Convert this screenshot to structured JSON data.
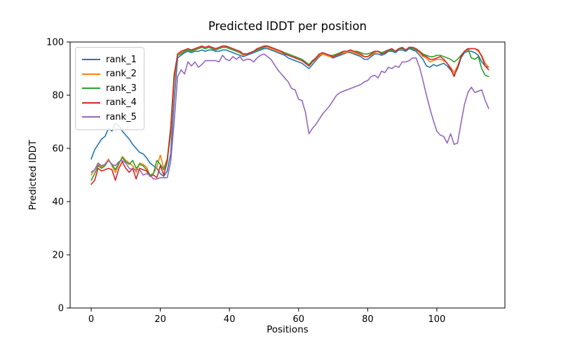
{
  "chart_data": {
    "type": "line",
    "title": "Predicted lDDT per position",
    "xlabel": "Positions",
    "ylabel": "Predicted lDDT",
    "xlim": [
      -6.1,
      119.7
    ],
    "ylim": [
      0,
      100
    ],
    "xticks": [
      0,
      20,
      40,
      60,
      80,
      100
    ],
    "yticks": [
      0,
      20,
      40,
      60,
      80,
      100
    ],
    "grid": false,
    "legend_position": "upper-left",
    "x_step": 1,
    "series": [
      {
        "name": "rank_1",
        "color": "#1f77b4",
        "values": [
          56,
          59.5,
          61.5,
          63.5,
          64.5,
          67.5,
          66.5,
          69.5,
          68.5,
          66.5,
          65,
          63.5,
          61.5,
          60,
          58.5,
          58,
          56.5,
          54.5,
          53.5,
          52.5,
          50.5,
          49.5,
          51.5,
          58,
          78,
          94,
          95,
          96,
          96.5,
          96,
          96.5,
          96.5,
          97,
          96.5,
          97,
          97,
          96.5,
          96.5,
          97,
          97,
          96.5,
          96,
          95.5,
          95,
          94.5,
          95,
          95.5,
          96,
          96.5,
          97,
          97.5,
          97.5,
          97,
          96.5,
          96,
          95.5,
          95,
          94,
          93.5,
          93,
          92.5,
          92,
          91,
          90,
          91.5,
          93,
          94.5,
          95.5,
          95,
          94.5,
          94,
          94.5,
          95,
          95.5,
          96,
          96,
          95.5,
          95,
          94.5,
          93.5,
          93.5,
          94.5,
          95.5,
          95.5,
          95,
          95.5,
          96.5,
          96.5,
          96,
          97,
          97,
          96.5,
          97.5,
          97,
          96.5,
          95,
          93.5,
          91,
          90.5,
          91.5,
          91,
          91.5,
          92,
          91,
          89.5,
          87.5,
          90,
          94,
          96,
          96.5,
          96.5,
          96,
          95,
          92.5,
          91,
          90.5
        ]
      },
      {
        "name": "rank_2",
        "color": "#ff7f0e",
        "values": [
          50,
          52,
          54,
          53,
          54,
          56,
          53.5,
          51,
          54,
          57,
          55.5,
          54.5,
          53.5,
          51,
          54.5,
          54,
          53,
          50,
          50.5,
          53,
          57.5,
          52.5,
          56,
          65,
          85,
          95.5,
          96,
          96.5,
          97,
          96.5,
          97.5,
          97.5,
          98,
          97.5,
          98,
          97.5,
          97,
          97.5,
          98,
          98,
          97.5,
          97,
          96.5,
          96,
          95,
          95.5,
          96,
          96.5,
          97,
          97.5,
          98,
          98,
          97.5,
          97,
          96.5,
          96,
          95.5,
          95,
          94.5,
          94,
          93.5,
          93,
          92,
          91,
          92.5,
          93.5,
          95,
          95.5,
          95,
          94.5,
          94.5,
          95,
          95.5,
          96,
          96,
          96.5,
          96,
          95.5,
          95,
          94.5,
          94.5,
          95,
          96,
          96.5,
          95.5,
          96,
          97,
          97,
          96.5,
          97.5,
          97.5,
          97,
          98,
          97.5,
          97,
          96,
          94.5,
          94,
          92.5,
          93,
          93.5,
          93.5,
          93,
          92,
          90.5,
          88.5,
          91,
          94.5,
          96.5,
          97,
          97.5,
          97.5,
          96.5,
          95,
          92,
          90.5
        ]
      },
      {
        "name": "rank_3",
        "color": "#2ca02c",
        "values": [
          48,
          50.5,
          53.5,
          52.5,
          53.5,
          55.5,
          54,
          52,
          54.5,
          56.5,
          55,
          54,
          55.5,
          52.5,
          54,
          53.5,
          52,
          50,
          50.5,
          55.5,
          54,
          52,
          56,
          68,
          88,
          95,
          95.5,
          96.5,
          97,
          96.5,
          97,
          97.5,
          98,
          97.5,
          98,
          97.5,
          97,
          97.5,
          98,
          98,
          97.5,
          97,
          96.5,
          96,
          95.5,
          95.5,
          96,
          96.5,
          97,
          97.5,
          98,
          98.5,
          98,
          97.5,
          97,
          96.5,
          96,
          95.5,
          95,
          94.5,
          94,
          93.5,
          92.5,
          91.5,
          93,
          94,
          95.5,
          96,
          95.5,
          95,
          95,
          95.5,
          96,
          96.5,
          96.5,
          97,
          96.5,
          96.5,
          96,
          95.5,
          95.5,
          96,
          96.5,
          96.5,
          96,
          96.5,
          97,
          97,
          96.5,
          97.5,
          97.5,
          97,
          98,
          97.5,
          97,
          96.5,
          95.5,
          95,
          94.5,
          94.5,
          95,
          95,
          94.5,
          94,
          93.5,
          92.5,
          93.5,
          95,
          96.5,
          97.5,
          94,
          93.5,
          94.5,
          90,
          87.5,
          87
        ]
      },
      {
        "name": "rank_4",
        "color": "#d62728",
        "values": [
          46.5,
          48,
          52.5,
          51.5,
          52,
          52.5,
          52,
          48,
          52.5,
          55,
          52.5,
          51,
          52.5,
          48.5,
          52.5,
          52,
          51.5,
          49.5,
          50,
          49,
          53.5,
          50,
          55,
          67,
          87,
          95.5,
          96.5,
          97,
          97.5,
          97,
          97.5,
          98,
          98.5,
          98,
          98.5,
          98,
          97.5,
          98,
          98.5,
          98.5,
          98,
          97.5,
          97,
          96.5,
          95.5,
          95.5,
          96,
          96.5,
          97.5,
          98,
          98.5,
          98.5,
          98,
          97.5,
          97,
          96.5,
          95.5,
          95,
          94.5,
          94,
          93.5,
          93,
          92,
          91,
          92.5,
          94,
          95.5,
          96,
          95.5,
          95,
          94.5,
          95,
          95.5,
          96.5,
          96.5,
          97,
          96.5,
          96,
          95.5,
          94.5,
          94.5,
          95.5,
          96.5,
          96.5,
          95.5,
          96,
          97,
          97.5,
          96.5,
          97.5,
          98,
          97,
          98,
          98,
          97.5,
          96.5,
          95,
          94.5,
          93.5,
          93.5,
          94,
          94.5,
          93.5,
          92,
          90,
          87,
          90.5,
          94.5,
          96.5,
          97.5,
          97.5,
          97.5,
          97,
          94.5,
          91,
          89.5
        ]
      },
      {
        "name": "rank_5",
        "color": "#9467bd",
        "values": [
          51,
          52,
          54.5,
          53.5,
          54,
          55.5,
          54,
          53.5,
          55,
          55.5,
          54.5,
          52.5,
          52,
          52,
          52,
          50,
          50.5,
          50,
          48.5,
          48.5,
          49,
          49,
          49,
          55,
          70,
          87,
          89.5,
          88,
          92.5,
          91,
          92.5,
          90.5,
          91.5,
          93,
          93,
          93,
          93,
          92.5,
          95,
          93.5,
          93,
          94.5,
          93.5,
          94.5,
          93,
          93.5,
          93.5,
          92.5,
          94,
          95,
          95.5,
          94.5,
          93.5,
          91.5,
          89.5,
          88,
          86.5,
          85,
          82.5,
          82,
          78.5,
          78,
          73.5,
          65.5,
          67.5,
          69,
          71,
          73,
          74.5,
          76,
          78,
          80,
          81,
          81.5,
          82,
          82.5,
          83,
          83.5,
          84,
          85,
          85.5,
          87,
          87.5,
          86.5,
          89,
          88.5,
          90.5,
          90,
          91,
          90.5,
          92.5,
          92.5,
          93,
          94,
          94,
          90.5,
          85.5,
          80,
          75,
          70.5,
          66.5,
          65,
          64.5,
          62,
          65.5,
          61.5,
          62,
          69.5,
          76.5,
          81,
          83,
          81,
          81.5,
          82,
          78,
          75
        ]
      }
    ]
  }
}
